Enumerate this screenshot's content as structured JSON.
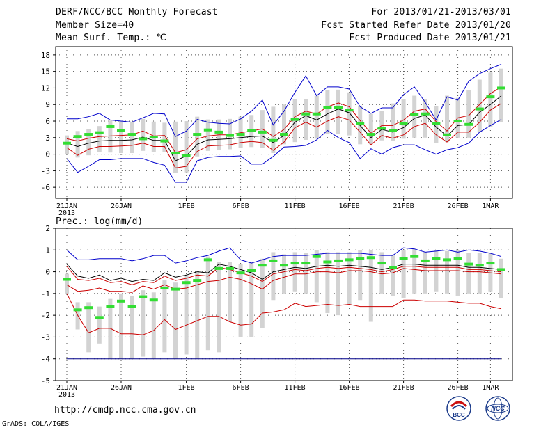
{
  "header": {
    "title": "DERF/NCC/BCC Monthly Forecast",
    "member_size": "Member Size=40",
    "variable": "Mean Surf. Temp.: ℃",
    "period": "For 2013/01/21-2013/03/01",
    "start_date": "Fcst Started Refer Date 2013/01/20",
    "produced_date": "Fcst Produced Date 2013/01/21"
  },
  "footer": {
    "url": "http://cmdp.ncc.cma.gov.cn",
    "credit": "GrADS: COLA/IGES",
    "logo_bcc": "BCC",
    "logo_ncc": "NCC"
  },
  "colors": {
    "max_min": "#0000cc",
    "spread": "#cc0000",
    "mean": "#000000",
    "median": "#33dd33",
    "box": "#d3d3d3",
    "grid": "#555555",
    "floor": "#000088"
  },
  "chart_data": [
    {
      "type": "box-ensemble",
      "title": "Mean Surf. Temp.: ℃",
      "ylim": [
        -8,
        19.5
      ],
      "yticks": [
        -6,
        -3,
        0,
        3,
        6,
        9,
        12,
        15,
        18
      ],
      "x_days": [
        0,
        5,
        11,
        16,
        21,
        26,
        31,
        36,
        39
      ],
      "x_ticklabels": [
        "21JAN",
        "26JAN",
        "1FEB",
        "6FEB",
        "11FEB",
        "16FEB",
        "21FEB",
        "26FEB",
        "1MAR"
      ],
      "x_sublabel": "2013",
      "series": [
        {
          "name": "max",
          "values": [
            6.4,
            6.4,
            6.8,
            7.4,
            6.2,
            6.0,
            5.8,
            6.6,
            7.4,
            7.3,
            3.2,
            4.2,
            6.3,
            5.8,
            5.6,
            5.5,
            6.4,
            7.8,
            9.8,
            5.3,
            7.8,
            11.2,
            14.2,
            10.6,
            12.2,
            12.2,
            11.8,
            8.6,
            7.4,
            8.4,
            8.4,
            10.8,
            12.2,
            9.4,
            6.2,
            10.4,
            9.8,
            13.2,
            14.6,
            15.5,
            16.3
          ]
        },
        {
          "name": "spread_upper",
          "values": [
            2.8,
            2.4,
            2.9,
            3.2,
            3.3,
            3.4,
            3.5,
            4.2,
            3.3,
            3.4,
            0.3,
            0.8,
            2.8,
            3.3,
            3.5,
            3.5,
            3.9,
            4.2,
            4.6,
            3.2,
            4.5,
            6.8,
            7.8,
            7.3,
            8.6,
            9.3,
            8.6,
            6.1,
            3.8,
            5.2,
            5.2,
            6.2,
            7.8,
            8.2,
            5.9,
            4.2,
            6.6,
            7.0,
            9.0,
            11.0,
            12.2
          ]
        },
        {
          "name": "mean",
          "values": [
            2.0,
            1.4,
            2.0,
            2.4,
            2.5,
            2.5,
            2.6,
            3.1,
            2.5,
            2.5,
            -1.2,
            -0.3,
            1.8,
            2.6,
            2.7,
            2.8,
            3.0,
            3.2,
            3.3,
            2.1,
            3.4,
            5.8,
            7.0,
            6.2,
            7.3,
            8.2,
            7.5,
            5.2,
            3.0,
            4.5,
            4.0,
            4.8,
            6.5,
            7.1,
            4.9,
            3.3,
            5.2,
            5.4,
            7.6,
            9.0,
            10.6
          ]
        },
        {
          "name": "spread_lower",
          "values": [
            1.2,
            -0.2,
            0.9,
            1.4,
            1.4,
            1.5,
            1.6,
            2.0,
            1.4,
            1.4,
            -2.5,
            -2.2,
            0.5,
            1.5,
            1.6,
            1.7,
            2.1,
            2.3,
            2.1,
            0.7,
            2.2,
            4.8,
            5.8,
            4.9,
            6.0,
            6.8,
            6.2,
            4.0,
            1.7,
            3.4,
            2.9,
            3.5,
            5.0,
            5.6,
            3.5,
            2.2,
            4.0,
            4.0,
            5.8,
            8.0,
            9.2
          ]
        },
        {
          "name": "min",
          "values": [
            -0.8,
            -3.3,
            -2.2,
            -1.0,
            -1.0,
            -0.8,
            -0.8,
            -0.8,
            -1.5,
            -2.0,
            -5.1,
            -5.1,
            -1.2,
            -0.6,
            -0.4,
            -0.4,
            -0.3,
            -1.8,
            -1.8,
            -0.4,
            1.3,
            1.4,
            1.6,
            2.6,
            4.3,
            3.0,
            2.1,
            -0.8,
            1.0,
            0.0,
            1.2,
            1.7,
            1.7,
            0.8,
            0.0,
            0.8,
            1.2,
            2.0,
            4.0,
            5.2,
            6.3
          ]
        },
        {
          "name": "median",
          "values": [
            2.0,
            3.2,
            3.6,
            3.9,
            5.0,
            4.3,
            3.6,
            2.8,
            3.1,
            2.4,
            0.2,
            -0.3,
            3.6,
            4.4,
            4.0,
            3.4,
            3.6,
            4.3,
            4.0,
            2.5,
            3.6,
            6.3,
            7.3,
            7.3,
            8.4,
            8.5,
            8.0,
            5.6,
            3.6,
            4.7,
            4.3,
            5.6,
            7.2,
            7.3,
            5.6,
            3.5,
            6.0,
            5.4,
            8.2,
            10.4,
            12.0
          ]
        },
        {
          "name": "box_high",
          "values": [
            3.4,
            4.2,
            4.5,
            5.1,
            6.1,
            6.0,
            5.8,
            6.4,
            5.9,
            5.7,
            5.9,
            6.0,
            6.8,
            6.3,
            6.3,
            6.4,
            6.8,
            7.1,
            8.0,
            8.6,
            9.0,
            10.0,
            10.0,
            10.6,
            11.6,
            11.7,
            11.2,
            8.8,
            7.3,
            7.8,
            9.2,
            10.0,
            10.6,
            10.0,
            8.7,
            10.6,
            10.2,
            11.6,
            13.5,
            14.8,
            15.5
          ]
        },
        {
          "name": "box_low",
          "values": [
            0.0,
            -0.6,
            -0.2,
            0.4,
            0.3,
            0.2,
            0.2,
            0.6,
            0.4,
            0.4,
            -3.4,
            -3.3,
            -0.4,
            0.6,
            0.8,
            0.9,
            1.1,
            1.3,
            1.1,
            0.2,
            1.8,
            2.2,
            2.6,
            2.8,
            3.6,
            3.6,
            3.4,
            1.8,
            1.8,
            2.5,
            2.4,
            2.8,
            3.0,
            3.0,
            2.0,
            2.2,
            3.0,
            3.0,
            4.0,
            5.0,
            5.8
          ]
        }
      ]
    },
    {
      "type": "box-ensemble",
      "title": "Prec.: log(mm/d)",
      "ylim": [
        -5,
        2
      ],
      "yticks": [
        -5,
        -4,
        -3,
        -2,
        -1,
        0,
        1,
        2
      ],
      "x_days": [
        0,
        5,
        11,
        16,
        21,
        26,
        31,
        36,
        39
      ],
      "x_ticklabels": [
        "21JAN",
        "26JAN",
        "1FEB",
        "6FEB",
        "11FEB",
        "16FEB",
        "21FEB",
        "26FEB",
        "1MAR"
      ],
      "x_sublabel": "2013",
      "series": [
        {
          "name": "max",
          "values": [
            1.0,
            0.55,
            0.55,
            0.6,
            0.6,
            0.6,
            0.5,
            0.6,
            0.75,
            0.75,
            0.4,
            0.5,
            0.65,
            0.75,
            0.95,
            1.1,
            0.55,
            0.4,
            0.55,
            0.7,
            0.75,
            0.75,
            0.75,
            0.8,
            0.85,
            0.85,
            0.85,
            0.85,
            0.8,
            0.75,
            0.75,
            1.1,
            1.05,
            0.9,
            0.95,
            1.0,
            0.9,
            1.0,
            0.95,
            0.85,
            0.7
          ]
        },
        {
          "name": "mean",
          "values": [
            0.35,
            -0.2,
            -0.3,
            -0.15,
            -0.4,
            -0.3,
            -0.45,
            -0.35,
            -0.4,
            -0.05,
            -0.25,
            -0.15,
            0.0,
            -0.05,
            0.35,
            0.25,
            0.1,
            -0.05,
            -0.35,
            0.0,
            0.1,
            0.2,
            0.15,
            0.25,
            0.3,
            0.25,
            0.3,
            0.25,
            0.2,
            0.1,
            0.2,
            0.35,
            0.35,
            0.3,
            0.3,
            0.3,
            0.3,
            0.2,
            0.2,
            0.15,
            0.1
          ]
        },
        {
          "name": "spread_upper",
          "values": [
            0.25,
            -0.35,
            -0.4,
            -0.3,
            -0.5,
            -0.45,
            -0.6,
            -0.45,
            -0.5,
            -0.2,
            -0.4,
            -0.3,
            -0.15,
            -0.2,
            0.2,
            0.1,
            -0.05,
            -0.2,
            -0.45,
            -0.1,
            0.0,
            0.1,
            0.05,
            0.15,
            0.2,
            0.15,
            0.2,
            0.15,
            0.1,
            0.0,
            0.1,
            0.25,
            0.25,
            0.2,
            0.2,
            0.2,
            0.2,
            0.1,
            0.1,
            0.05,
            0.0
          ]
        },
        {
          "name": "spread_lower",
          "values": [
            -0.6,
            -0.9,
            -0.85,
            -0.75,
            -0.9,
            -0.9,
            -0.95,
            -0.65,
            -0.8,
            -0.6,
            -0.8,
            -0.75,
            -0.6,
            -0.45,
            -0.4,
            -0.25,
            -0.35,
            -0.55,
            -0.8,
            -0.4,
            -0.25,
            -0.1,
            -0.1,
            0.0,
            0.0,
            -0.05,
            0.05,
            0.05,
            0.0,
            -0.1,
            -0.05,
            0.15,
            0.1,
            0.05,
            0.05,
            0.05,
            0.05,
            0.0,
            0.0,
            -0.05,
            -0.1
          ]
        },
        {
          "name": "lower_bound",
          "values": [
            -1.0,
            -2.0,
            -2.8,
            -2.6,
            -2.6,
            -2.85,
            -2.85,
            -2.9,
            -2.7,
            -2.2,
            -2.65,
            -2.45,
            -2.25,
            -2.05,
            -2.05,
            -2.3,
            -2.45,
            -2.4,
            -1.9,
            -1.85,
            -1.75,
            -1.45,
            -1.6,
            -1.55,
            -1.5,
            -1.55,
            -1.5,
            -1.6,
            -1.6,
            -1.6,
            -1.6,
            -1.3,
            -1.3,
            -1.35,
            -1.35,
            -1.35,
            -1.4,
            -1.45,
            -1.45,
            -1.6,
            -1.7
          ]
        },
        {
          "name": "floor",
          "values": [
            -4.0,
            -4.0,
            -4.0,
            -4.0,
            -4.0,
            -4.0,
            -4.0,
            -4.0,
            -4.0,
            -4.0,
            -4.0,
            -4.0,
            -4.0,
            -4.0,
            -4.0,
            -4.0,
            -4.0,
            -4.0,
            -4.0,
            -4.0,
            -4.0,
            -4.0,
            -4.0,
            -4.0,
            -4.0,
            -4.0,
            -4.0,
            -4.0,
            -4.0,
            -4.0,
            -4.0,
            -4.0,
            -4.0,
            -4.0,
            -4.0,
            -4.0,
            -4.0,
            -4.0,
            -4.0,
            -4.0,
            -4.0
          ]
        },
        {
          "name": "median",
          "values": [
            -0.35,
            -1.75,
            -1.65,
            -2.1,
            -1.6,
            -1.35,
            -1.6,
            -1.15,
            -1.3,
            -0.75,
            -0.8,
            -0.5,
            -0.4,
            0.55,
            0.15,
            0.15,
            -0.05,
            0.05,
            0.3,
            0.5,
            0.3,
            0.4,
            0.4,
            0.7,
            0.45,
            0.5,
            0.55,
            0.6,
            0.65,
            0.4,
            0.2,
            0.6,
            0.7,
            0.5,
            0.6,
            0.55,
            0.6,
            0.35,
            0.3,
            0.4,
            0.1
          ]
        },
        {
          "name": "box_high",
          "values": [
            -0.1,
            -1.4,
            -1.4,
            -1.6,
            -1.25,
            -1.0,
            -1.1,
            -0.85,
            -0.95,
            -0.4,
            -0.5,
            -0.15,
            -0.05,
            0.7,
            0.45,
            0.45,
            0.35,
            0.45,
            0.6,
            0.9,
            0.8,
            0.9,
            0.85,
            1.0,
            0.9,
            0.9,
            0.9,
            1.0,
            1.0,
            0.9,
            0.75,
            1.0,
            1.05,
            0.9,
            1.0,
            0.95,
            1.0,
            0.85,
            0.85,
            0.85,
            0.6
          ]
        },
        {
          "name": "box_low",
          "values": [
            -1.0,
            -2.65,
            -3.7,
            -3.3,
            -4.0,
            -4.0,
            -4.0,
            -3.9,
            -4.0,
            -3.7,
            -4.0,
            -3.8,
            -4.0,
            -3.6,
            -3.7,
            -2.3,
            -3.0,
            -3.0,
            -2.6,
            -1.3,
            -1.0,
            -0.9,
            -1.0,
            -1.4,
            -1.9,
            -2.0,
            -1.5,
            -1.3,
            -2.3,
            -1.0,
            -1.1,
            -1.2,
            -1.0,
            -1.0,
            -0.9,
            -1.0,
            -1.1,
            -1.0,
            -1.0,
            -0.9,
            -1.2
          ]
        }
      ]
    }
  ]
}
